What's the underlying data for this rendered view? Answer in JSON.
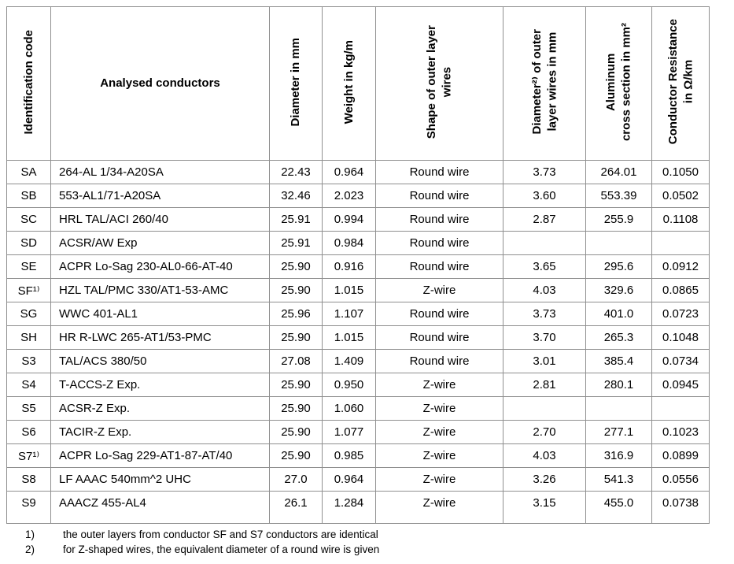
{
  "table": {
    "columns": [
      {
        "key": "id",
        "label": "Identification code"
      },
      {
        "key": "conductor",
        "label": "Analysed conductors"
      },
      {
        "key": "diameter",
        "label": "Diameter in mm"
      },
      {
        "key": "weight",
        "label": "Weight in kg/m"
      },
      {
        "key": "shape",
        "label": "Shape of outer layer\nwires"
      },
      {
        "key": "wire_diameter",
        "label": "Diameter²⁾ of outer\nlayer wires in mm"
      },
      {
        "key": "cross_section",
        "label": "Aluminum\ncross section in mm²"
      },
      {
        "key": "resistance",
        "label": "Conductor Resistance\nin Ω/km"
      }
    ],
    "rows": [
      {
        "id": "SA",
        "conductor": "264-AL 1/34-A20SA",
        "diameter": "22.43",
        "weight": "0.964",
        "shape": "Round wire",
        "wire_diameter": "3.73",
        "cross_section": "264.01",
        "resistance": "0.1050"
      },
      {
        "id": "SB",
        "conductor": "553-AL1/71-A20SA",
        "diameter": "32.46",
        "weight": "2.023",
        "shape": "Round wire",
        "wire_diameter": "3.60",
        "cross_section": "553.39",
        "resistance": "0.0502"
      },
      {
        "id": "SC",
        "conductor": "HRL TAL/ACI 260/40",
        "diameter": "25.91",
        "weight": "0.994",
        "shape": "Round wire",
        "wire_diameter": "2.87",
        "cross_section": "255.9",
        "resistance": "0.1108"
      },
      {
        "id": "SD",
        "conductor": "ACSR/AW Exp",
        "diameter": "25.91",
        "weight": "0.984",
        "shape": "Round wire",
        "wire_diameter": "",
        "cross_section": "",
        "resistance": ""
      },
      {
        "id": "SE",
        "conductor": "ACPR Lo-Sag 230-AL0-66-AT-40",
        "diameter": "25.90",
        "weight": "0.916",
        "shape": "Round wire",
        "wire_diameter": "3.65",
        "cross_section": "295.6",
        "resistance": "0.0912"
      },
      {
        "id": "SF¹⁾",
        "conductor": "HZL TAL/PMC 330/AT1-53-AMC",
        "diameter": "25.90",
        "weight": "1.015",
        "shape": "Z-wire",
        "wire_diameter": "4.03",
        "cross_section": "329.6",
        "resistance": "0.0865"
      },
      {
        "id": "SG",
        "conductor": "WWC 401-AL1",
        "diameter": "25.96",
        "weight": "1.107",
        "shape": "Round wire",
        "wire_diameter": "3.73",
        "cross_section": "401.0",
        "resistance": "0.0723"
      },
      {
        "id": "SH",
        "conductor": "HR R-LWC 265-AT1/53-PMC",
        "diameter": "25.90",
        "weight": "1.015",
        "shape": "Round wire",
        "wire_diameter": "3.70",
        "cross_section": "265.3",
        "resistance": "0.1048"
      },
      {
        "id": "S3",
        "conductor": "TAL/ACS 380/50",
        "diameter": "27.08",
        "weight": "1.409",
        "shape": "Round wire",
        "wire_diameter": "3.01",
        "cross_section": "385.4",
        "resistance": "0.0734"
      },
      {
        "id": "S4",
        "conductor": "T-ACCS-Z Exp.",
        "diameter": "25.90",
        "weight": "0.950",
        "shape": "Z-wire",
        "wire_diameter": "2.81",
        "cross_section": "280.1",
        "resistance": "0.0945"
      },
      {
        "id": "S5",
        "conductor": "ACSR-Z Exp.",
        "diameter": "25.90",
        "weight": "1.060",
        "shape": "Z-wire",
        "wire_diameter": "",
        "cross_section": "",
        "resistance": ""
      },
      {
        "id": "S6",
        "conductor": "TACIR-Z Exp.",
        "diameter": "25.90",
        "weight": "1.077",
        "shape": "Z-wire",
        "wire_diameter": "2.70",
        "cross_section": "277.1",
        "resistance": "0.1023"
      },
      {
        "id": "S7¹⁾",
        "conductor": "ACPR Lo-Sag 229-AT1-87-AT/40",
        "diameter": "25.90",
        "weight": "0.985",
        "shape": "Z-wire",
        "wire_diameter": "4.03",
        "cross_section": "316.9",
        "resistance": "0.0899"
      },
      {
        "id": "S8",
        "conductor": "LF AAAC 540mm^2 UHC",
        "diameter": "27.0",
        "weight": "0.964",
        "shape": "Z-wire",
        "wire_diameter": "3.26",
        "cross_section": "541.3",
        "resistance": "0.0556"
      },
      {
        "id": "S9",
        "conductor": "AAACZ 455-AL4",
        "diameter": "26.1",
        "weight": "1.284",
        "shape": "Z-wire",
        "wire_diameter": "3.15",
        "cross_section": "455.0",
        "resistance": "0.0738"
      }
    ],
    "footnotes": [
      {
        "marker": "1)",
        "text": "the outer layers from conductor SF and S7 conductors are identical"
      },
      {
        "marker": "2)",
        "text": "for Z-shaped wires, the equivalent diameter of a round wire is given"
      }
    ]
  },
  "colors": {
    "border": "#8f8f8f",
    "text": "#000000",
    "background": "#ffffff"
  }
}
